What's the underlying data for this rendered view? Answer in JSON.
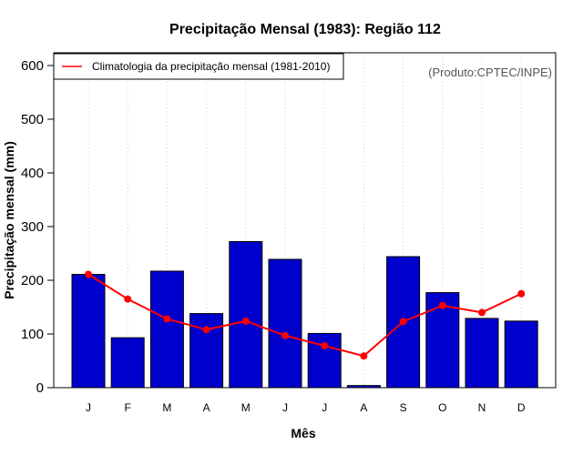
{
  "chart_data": {
    "type": "bar",
    "title": "Precipitação Mensal (1983): Região 112",
    "xlabel": "Mês",
    "ylabel": "Precipitação mensal (mm)",
    "categories": [
      "J",
      "F",
      "M",
      "A",
      "M",
      "J",
      "J",
      "A",
      "S",
      "O",
      "N",
      "D"
    ],
    "ylim": [
      0,
      600
    ],
    "yticks": [
      0,
      100,
      200,
      300,
      400,
      500,
      600
    ],
    "grid": "vertical dotted",
    "series": [
      {
        "name": "Precipitação mensal (1983)",
        "type": "bar",
        "color": "#0000cc",
        "values": [
          211,
          93,
          217,
          138,
          272,
          239,
          101,
          4,
          244,
          177,
          129,
          124
        ]
      },
      {
        "name": "Climatologia da precipitação mensal (1981-2010)",
        "type": "line",
        "color": "#ff0000",
        "values": [
          211,
          165,
          128,
          108,
          124,
          97,
          78,
          59,
          123,
          153,
          140,
          175
        ]
      }
    ],
    "legend": {
      "entries": [
        "Climatologia da precipitação mensal (1981-2010)"
      ],
      "position": "top-left"
    },
    "annotation": "(Produto:CPTEC/INPE)"
  }
}
